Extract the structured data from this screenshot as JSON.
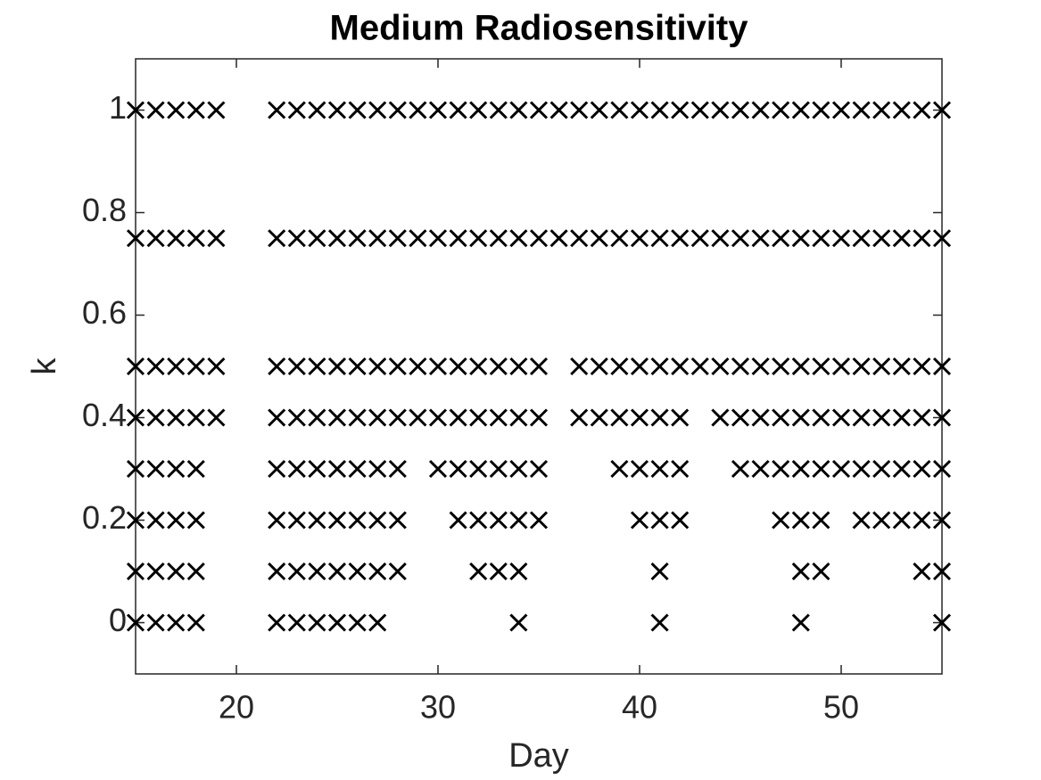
{
  "chart_data": {
    "type": "scatter",
    "title": "Medium Radiosensitivity",
    "x_label": "Day",
    "y_label": "k",
    "marker": "x",
    "color": "#000000",
    "x": [
      15,
      16,
      17,
      18,
      19,
      22,
      23,
      24,
      25,
      26,
      27,
      28,
      29,
      30,
      31,
      32,
      33,
      34,
      35,
      36,
      37,
      38,
      39,
      40,
      41,
      42,
      43,
      44,
      45,
      46,
      47,
      48,
      49,
      50,
      51,
      52,
      53,
      54,
      55,
      15,
      16,
      17,
      18,
      19,
      22,
      23,
      24,
      25,
      26,
      27,
      28,
      29,
      30,
      31,
      32,
      33,
      34,
      35,
      36,
      37,
      38,
      39,
      40,
      41,
      42,
      43,
      44,
      45,
      46,
      47,
      48,
      49,
      50,
      51,
      52,
      53,
      54,
      55,
      15,
      16,
      17,
      18,
      19,
      22,
      23,
      24,
      25,
      26,
      27,
      28,
      29,
      30,
      31,
      32,
      33,
      34,
      35,
      37,
      38,
      39,
      40,
      41,
      42,
      43,
      44,
      45,
      46,
      47,
      48,
      49,
      50,
      51,
      52,
      53,
      54,
      55,
      15,
      16,
      17,
      18,
      19,
      22,
      23,
      24,
      25,
      26,
      27,
      28,
      29,
      30,
      31,
      32,
      33,
      34,
      35,
      37,
      38,
      39,
      40,
      41,
      42,
      44,
      45,
      46,
      47,
      48,
      49,
      50,
      51,
      52,
      53,
      54,
      55,
      15,
      16,
      17,
      18,
      22,
      23,
      24,
      25,
      26,
      27,
      28,
      30,
      31,
      32,
      33,
      34,
      35,
      39,
      40,
      41,
      42,
      45,
      46,
      47,
      48,
      49,
      50,
      51,
      52,
      53,
      54,
      55,
      15,
      16,
      17,
      18,
      22,
      23,
      24,
      25,
      26,
      27,
      28,
      31,
      32,
      33,
      34,
      35,
      40,
      41,
      42,
      47,
      48,
      49,
      51,
      52,
      53,
      54,
      55,
      15,
      16,
      17,
      18,
      22,
      23,
      24,
      25,
      26,
      27,
      28,
      32,
      33,
      34,
      41,
      48,
      49,
      54,
      55,
      15,
      16,
      17,
      18,
      22,
      23,
      24,
      25,
      26,
      27,
      34,
      41,
      48,
      55
    ],
    "values": [
      1,
      1,
      1,
      1,
      1,
      1,
      1,
      1,
      1,
      1,
      1,
      1,
      1,
      1,
      1,
      1,
      1,
      1,
      1,
      1,
      1,
      1,
      1,
      1,
      1,
      1,
      1,
      1,
      1,
      1,
      1,
      1,
      1,
      1,
      1,
      1,
      1,
      1,
      1,
      0.75,
      0.75,
      0.75,
      0.75,
      0.75,
      0.75,
      0.75,
      0.75,
      0.75,
      0.75,
      0.75,
      0.75,
      0.75,
      0.75,
      0.75,
      0.75,
      0.75,
      0.75,
      0.75,
      0.75,
      0.75,
      0.75,
      0.75,
      0.75,
      0.75,
      0.75,
      0.75,
      0.75,
      0.75,
      0.75,
      0.75,
      0.75,
      0.75,
      0.75,
      0.75,
      0.75,
      0.75,
      0.75,
      0.75,
      0.5,
      0.5,
      0.5,
      0.5,
      0.5,
      0.5,
      0.5,
      0.5,
      0.5,
      0.5,
      0.5,
      0.5,
      0.5,
      0.5,
      0.5,
      0.5,
      0.5,
      0.5,
      0.5,
      0.5,
      0.5,
      0.5,
      0.5,
      0.5,
      0.5,
      0.5,
      0.5,
      0.5,
      0.5,
      0.5,
      0.5,
      0.5,
      0.5,
      0.5,
      0.5,
      0.5,
      0.5,
      0.5,
      0.4,
      0.4,
      0.4,
      0.4,
      0.4,
      0.4,
      0.4,
      0.4,
      0.4,
      0.4,
      0.4,
      0.4,
      0.4,
      0.4,
      0.4,
      0.4,
      0.4,
      0.4,
      0.4,
      0.4,
      0.4,
      0.4,
      0.4,
      0.4,
      0.4,
      0.4,
      0.4,
      0.4,
      0.4,
      0.4,
      0.4,
      0.4,
      0.4,
      0.4,
      0.4,
      0.4,
      0.4,
      0.3,
      0.3,
      0.3,
      0.3,
      0.3,
      0.3,
      0.3,
      0.3,
      0.3,
      0.3,
      0.3,
      0.3,
      0.3,
      0.3,
      0.3,
      0.3,
      0.3,
      0.3,
      0.3,
      0.3,
      0.3,
      0.3,
      0.3,
      0.3,
      0.3,
      0.3,
      0.3,
      0.3,
      0.3,
      0.3,
      0.3,
      0.3,
      0.2,
      0.2,
      0.2,
      0.2,
      0.2,
      0.2,
      0.2,
      0.2,
      0.2,
      0.2,
      0.2,
      0.2,
      0.2,
      0.2,
      0.2,
      0.2,
      0.2,
      0.2,
      0.2,
      0.2,
      0.2,
      0.2,
      0.2,
      0.2,
      0.2,
      0.2,
      0.2,
      0.1,
      0.1,
      0.1,
      0.1,
      0.1,
      0.1,
      0.1,
      0.1,
      0.1,
      0.1,
      0.1,
      0.1,
      0.1,
      0.1,
      0.1,
      0.1,
      0.1,
      0.1,
      0.1,
      0,
      0,
      0,
      0,
      0,
      0,
      0,
      0,
      0,
      0,
      0,
      0,
      0,
      0
    ],
    "xlim": [
      15,
      55
    ],
    "ylim": [
      -0.1,
      1.1
    ],
    "xticks": [
      20,
      30,
      40,
      50
    ],
    "yticks": [
      0,
      0.2,
      0.4,
      0.6,
      0.8,
      1
    ],
    "grid": false
  }
}
